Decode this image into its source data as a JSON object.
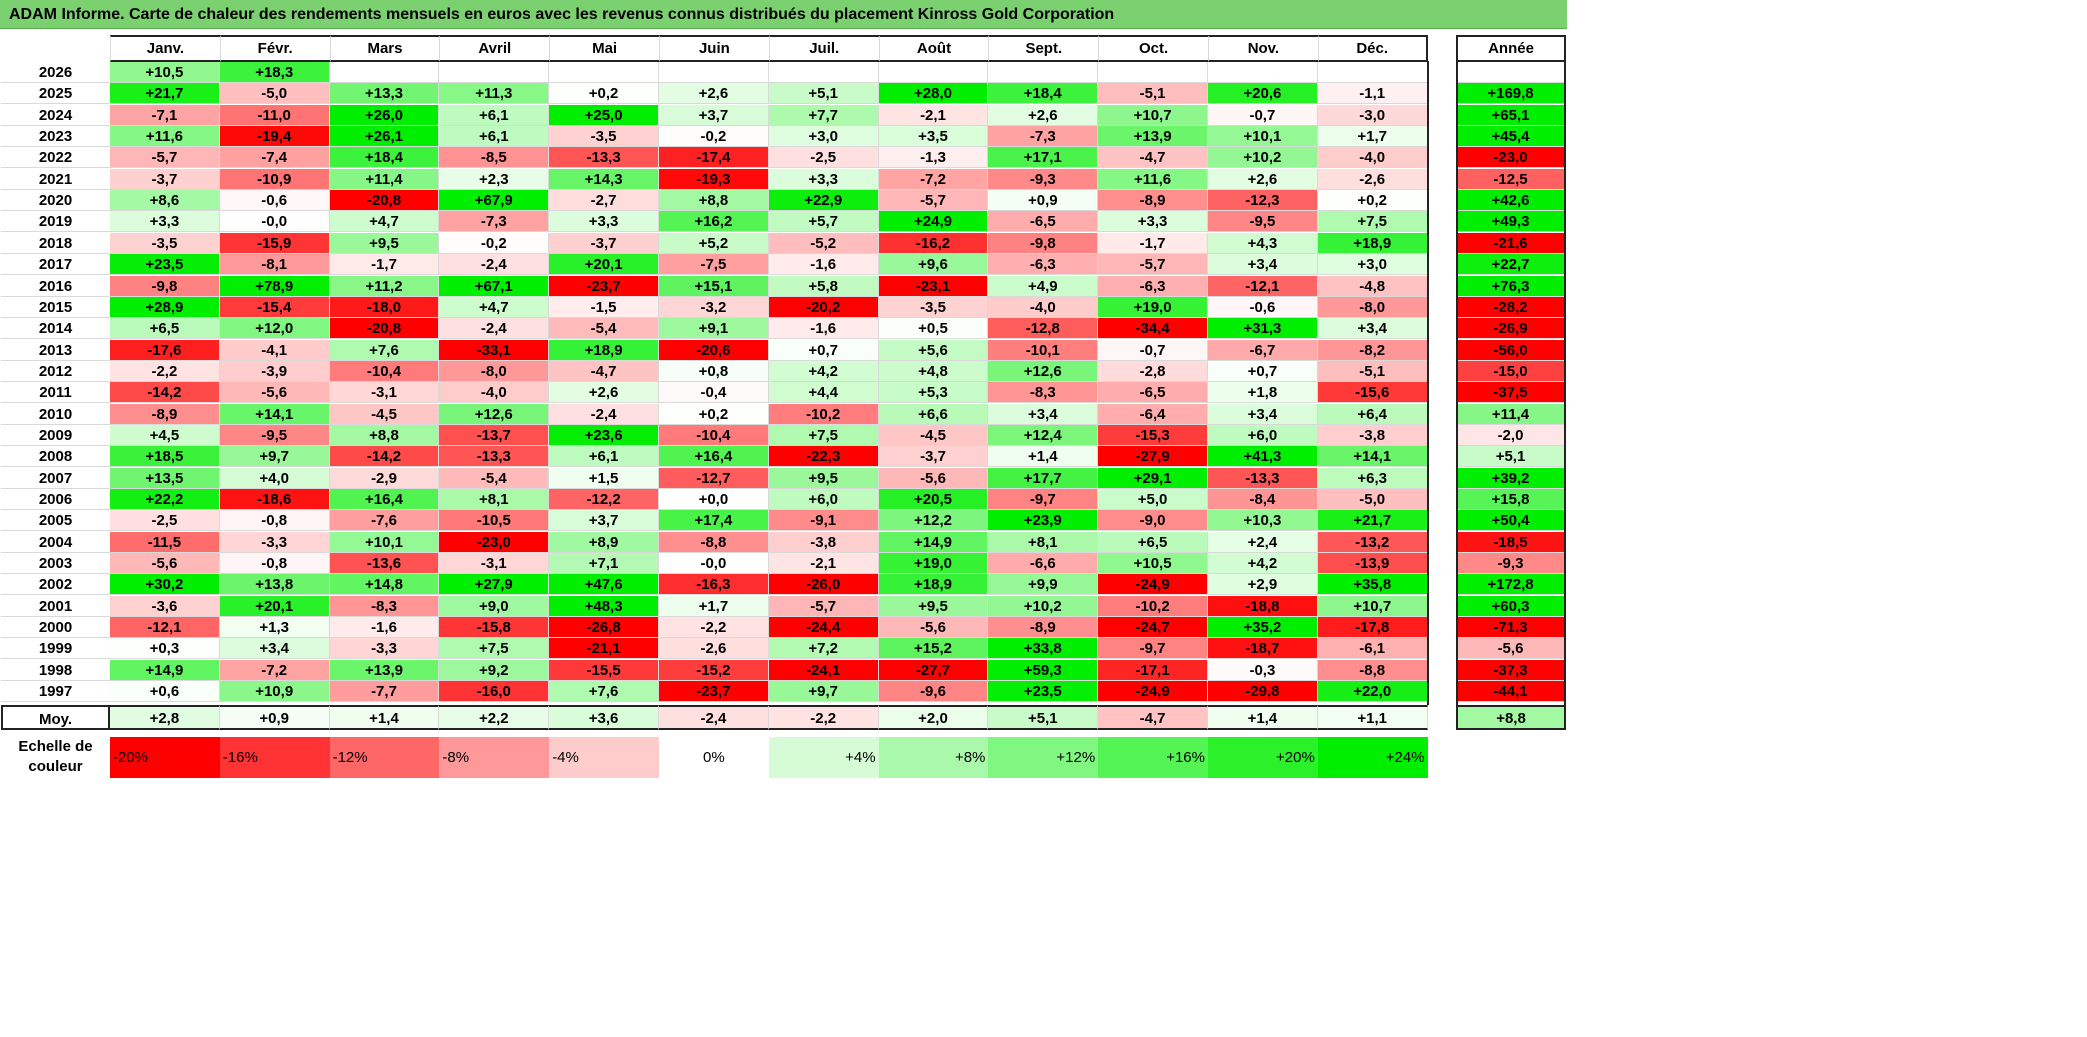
{
  "title": "ADAM Informe. Carte de chaleur des rendements mensuels en euros avec les revenus connus distribués du placement Kinross Gold Corporation",
  "chart_data": {
    "type": "heatmap",
    "months": [
      "Janv.",
      "Févr.",
      "Mars",
      "Avril",
      "Mai",
      "Juin",
      "Juil.",
      "Août",
      "Sept.",
      "Oct.",
      "Nov.",
      "Déc."
    ],
    "annual_header": "Année",
    "rows": [
      {
        "year": "2026",
        "values": [
          "+10,5",
          "+18,3",
          "",
          "",
          "",
          "",
          "",
          "",
          "",
          "",
          "",
          ""
        ],
        "annual": ""
      },
      {
        "year": "2025",
        "values": [
          "+21,7",
          "-5,0",
          "+13,3",
          "+11,3",
          "+0,2",
          "+2,6",
          "+5,1",
          "+28,0",
          "+18,4",
          "-5,1",
          "+20,6",
          "-1,1"
        ],
        "annual": "+169,8"
      },
      {
        "year": "2024",
        "values": [
          "-7,1",
          "-11,0",
          "+26,0",
          "+6,1",
          "+25,0",
          "+3,7",
          "+7,7",
          "-2,1",
          "+2,6",
          "+10,7",
          "-0,7",
          "-3,0"
        ],
        "annual": "+65,1"
      },
      {
        "year": "2023",
        "values": [
          "+11,6",
          "-19,4",
          "+26,1",
          "+6,1",
          "-3,5",
          "-0,2",
          "+3,0",
          "+3,5",
          "-7,3",
          "+13,9",
          "+10,1",
          "+1,7"
        ],
        "annual": "+45,4"
      },
      {
        "year": "2022",
        "values": [
          "-5,7",
          "-7,4",
          "+18,4",
          "-8,5",
          "-13,3",
          "-17,4",
          "-2,5",
          "-1,3",
          "+17,1",
          "-4,7",
          "+10,2",
          "-4,0"
        ],
        "annual": "-23,0"
      },
      {
        "year": "2021",
        "values": [
          "-3,7",
          "-10,9",
          "+11,4",
          "+2,3",
          "+14,3",
          "-19,3",
          "+3,3",
          "-7,2",
          "-9,3",
          "+11,6",
          "+2,6",
          "-2,6"
        ],
        "annual": "-12,5"
      },
      {
        "year": "2020",
        "values": [
          "+8,6",
          "-0,6",
          "-20,8",
          "+67,9",
          "-2,7",
          "+8,8",
          "+22,9",
          "-5,7",
          "+0,9",
          "-8,9",
          "-12,3",
          "+0,2"
        ],
        "annual": "+42,6"
      },
      {
        "year": "2019",
        "values": [
          "+3,3",
          "-0,0",
          "+4,7",
          "-7,3",
          "+3,3",
          "+16,2",
          "+5,7",
          "+24,9",
          "-6,5",
          "+3,3",
          "-9,5",
          "+7,5"
        ],
        "annual": "+49,3"
      },
      {
        "year": "2018",
        "values": [
          "-3,5",
          "-15,9",
          "+9,5",
          "-0,2",
          "-3,7",
          "+5,2",
          "-5,2",
          "-16,2",
          "-9,8",
          "-1,7",
          "+4,3",
          "+18,9"
        ],
        "annual": "-21,6"
      },
      {
        "year": "2017",
        "values": [
          "+23,5",
          "-8,1",
          "-1,7",
          "-2,4",
          "+20,1",
          "-7,5",
          "-1,6",
          "+9,6",
          "-6,3",
          "-5,7",
          "+3,4",
          "+3,0"
        ],
        "annual": "+22,7"
      },
      {
        "year": "2016",
        "values": [
          "-9,8",
          "+78,9",
          "+11,2",
          "+67,1",
          "-23,7",
          "+15,1",
          "+5,8",
          "-23,1",
          "+4,9",
          "-6,3",
          "-12,1",
          "-4,8"
        ],
        "annual": "+76,3"
      },
      {
        "year": "2015",
        "values": [
          "+28,9",
          "-15,4",
          "-18,0",
          "+4,7",
          "-1,5",
          "-3,2",
          "-20,2",
          "-3,5",
          "-4,0",
          "+19,0",
          "-0,6",
          "-8,0"
        ],
        "annual": "-28,2"
      },
      {
        "year": "2014",
        "values": [
          "+6,5",
          "+12,0",
          "-20,8",
          "-2,4",
          "-5,4",
          "+9,1",
          "-1,6",
          "+0,5",
          "-12,8",
          "-34,4",
          "+31,3",
          "+3,4"
        ],
        "annual": "-26,9"
      },
      {
        "year": "2013",
        "values": [
          "-17,6",
          "-4,1",
          "+7,6",
          "-33,1",
          "+18,9",
          "-20,6",
          "+0,7",
          "+5,6",
          "-10,1",
          "-0,7",
          "-6,7",
          "-8,2"
        ],
        "annual": "-56,0"
      },
      {
        "year": "2012",
        "values": [
          "-2,2",
          "-3,9",
          "-10,4",
          "-8,0",
          "-4,7",
          "+0,8",
          "+4,2",
          "+4,8",
          "+12,6",
          "-2,8",
          "+0,7",
          "-5,1"
        ],
        "annual": "-15,0"
      },
      {
        "year": "2011",
        "values": [
          "-14,2",
          "-5,6",
          "-3,1",
          "-4,0",
          "+2,6",
          "-0,4",
          "+4,4",
          "+5,3",
          "-8,3",
          "-6,5",
          "+1,8",
          "-15,6"
        ],
        "annual": "-37,5"
      },
      {
        "year": "2010",
        "values": [
          "-8,9",
          "+14,1",
          "-4,5",
          "+12,6",
          "-2,4",
          "+0,2",
          "-10,2",
          "+6,6",
          "+3,4",
          "-6,4",
          "+3,4",
          "+6,4"
        ],
        "annual": "+11,4"
      },
      {
        "year": "2009",
        "values": [
          "+4,5",
          "-9,5",
          "+8,8",
          "-13,7",
          "+23,6",
          "-10,4",
          "+7,5",
          "-4,5",
          "+12,4",
          "-15,3",
          "+6,0",
          "-3,8"
        ],
        "annual": "-2,0"
      },
      {
        "year": "2008",
        "values": [
          "+18,5",
          "+9,7",
          "-14,2",
          "-13,3",
          "+6,1",
          "+16,4",
          "-22,3",
          "-3,7",
          "+1,4",
          "-27,9",
          "+41,3",
          "+14,1"
        ],
        "annual": "+5,1"
      },
      {
        "year": "2007",
        "values": [
          "+13,5",
          "+4,0",
          "-2,9",
          "-5,4",
          "+1,5",
          "-12,7",
          "+9,5",
          "-5,6",
          "+17,7",
          "+29,1",
          "-13,3",
          "+6,3"
        ],
        "annual": "+39,2"
      },
      {
        "year": "2006",
        "values": [
          "+22,2",
          "-18,6",
          "+16,4",
          "+8,1",
          "-12,2",
          "+0,0",
          "+6,0",
          "+20,5",
          "-9,7",
          "+5,0",
          "-8,4",
          "-5,0"
        ],
        "annual": "+15,8"
      },
      {
        "year": "2005",
        "values": [
          "-2,5",
          "-0,8",
          "-7,6",
          "-10,5",
          "+3,7",
          "+17,4",
          "-9,1",
          "+12,2",
          "+23,9",
          "-9,0",
          "+10,3",
          "+21,7"
        ],
        "annual": "+50,4"
      },
      {
        "year": "2004",
        "values": [
          "-11,5",
          "-3,3",
          "+10,1",
          "-23,0",
          "+8,9",
          "-8,8",
          "-3,8",
          "+14,9",
          "+8,1",
          "+6,5",
          "+2,4",
          "-13,2"
        ],
        "annual": "-18,5"
      },
      {
        "year": "2003",
        "values": [
          "-5,6",
          "-0,8",
          "-13,6",
          "-3,1",
          "+7,1",
          "-0,0",
          "-2,1",
          "+19,0",
          "-6,6",
          "+10,5",
          "+4,2",
          "-13,9"
        ],
        "annual": "-9,3"
      },
      {
        "year": "2002",
        "values": [
          "+30,2",
          "+13,8",
          "+14,8",
          "+27,9",
          "+47,6",
          "-16,3",
          "-26,0",
          "+18,9",
          "+9,9",
          "-24,9",
          "+2,9",
          "+35,8"
        ],
        "annual": "+172,8"
      },
      {
        "year": "2001",
        "values": [
          "-3,6",
          "+20,1",
          "-8,3",
          "+9,0",
          "+48,3",
          "+1,7",
          "-5,7",
          "+9,5",
          "+10,2",
          "-10,2",
          "-18,8",
          "+10,7"
        ],
        "annual": "+60,3"
      },
      {
        "year": "2000",
        "values": [
          "-12,1",
          "+1,3",
          "-1,6",
          "-15,8",
          "-26,8",
          "-2,2",
          "-24,4",
          "-5,6",
          "-8,9",
          "-24,7",
          "+35,2",
          "-17,8"
        ],
        "annual": "-71,3"
      },
      {
        "year": "1999",
        "values": [
          "+0,3",
          "+3,4",
          "-3,3",
          "+7,5",
          "-21,1",
          "-2,6",
          "+7,2",
          "+15,2",
          "+33,8",
          "-9,7",
          "-18,7",
          "-6,1"
        ],
        "annual": "-5,6"
      },
      {
        "year": "1998",
        "values": [
          "+14,9",
          "-7,2",
          "+13,9",
          "+9,2",
          "-15,5",
          "-15,2",
          "-24,1",
          "-27,7",
          "+59,3",
          "-17,1",
          "-0,3",
          "-8,8"
        ],
        "annual": "-37,3"
      },
      {
        "year": "1997",
        "values": [
          "+0,6",
          "+10,9",
          "-7,7",
          "-16,0",
          "+7,6",
          "-23,7",
          "+9,7",
          "-9,6",
          "+23,5",
          "-24,9",
          "-29,8",
          "+22,0"
        ],
        "annual": "-44,1"
      }
    ],
    "average": {
      "label": "Moy.",
      "values": [
        "+2,8",
        "+0,9",
        "+1,4",
        "+2,2",
        "+3,6",
        "-2,4",
        "-2,2",
        "+2,0",
        "+5,1",
        "-4,7",
        "+1,4",
        "+1,1"
      ],
      "annual": "+8,8"
    },
    "scale": {
      "label_line1": "Echelle de",
      "label_line2": "couleur",
      "stops": [
        "-20%",
        "-16%",
        "-12%",
        "-8%",
        "-4%",
        "0%",
        "+4%",
        "+8%",
        "+12%",
        "+16%",
        "+20%",
        "+24%"
      ],
      "stop_values": [
        -20,
        -16,
        -12,
        -8,
        -4,
        0,
        4,
        8,
        12,
        16,
        20,
        24
      ],
      "colors": {
        "negative_max": "#ff0000",
        "neutral": "#ffffff",
        "positive_max": "#00ee00"
      }
    }
  }
}
